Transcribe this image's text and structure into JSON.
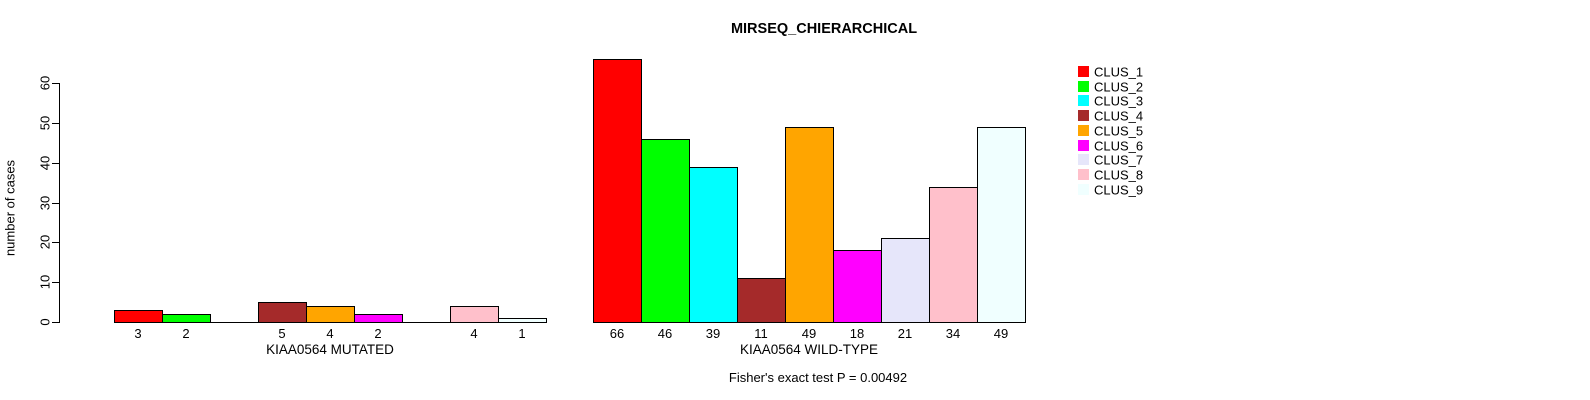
{
  "chart_data": {
    "type": "bar",
    "title": "MIRSEQ_CHIERARCHICAL",
    "ylabel": "number of cases",
    "caption": "Fisher's exact test P = 0.00492",
    "ylim": [
      0,
      60
    ],
    "yticks": [
      0,
      10,
      20,
      30,
      40,
      50,
      60
    ],
    "grid": false,
    "legend_position": "right",
    "categories": [
      "CLUS_1",
      "CLUS_2",
      "CLUS_3",
      "CLUS_4",
      "CLUS_5",
      "CLUS_6",
      "CLUS_7",
      "CLUS_8",
      "CLUS_9"
    ],
    "colors": [
      "#FF0000",
      "#00FF00",
      "#00FFFF",
      "#A52A2A",
      "#FFA500",
      "#FF00FF",
      "#E6E6FA",
      "#FFC0CB",
      "#F0FFFF"
    ],
    "groups": [
      {
        "label": "KIAA0564 MUTATED",
        "values": [
          3,
          2,
          0,
          5,
          4,
          2,
          0,
          4,
          1
        ]
      },
      {
        "label": "KIAA0564 WILD-TYPE",
        "values": [
          66,
          46,
          39,
          11,
          49,
          18,
          21,
          34,
          49
        ]
      }
    ],
    "axis_color": "#000000",
    "bar_border_color": "#000000",
    "note": "bar value labels shown only for non-zero bars"
  }
}
